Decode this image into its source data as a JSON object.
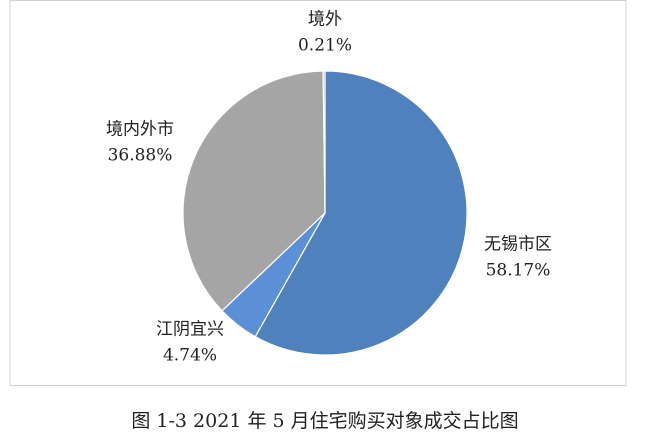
{
  "chart_data": {
    "type": "pie",
    "title": "图 1-3 2021 年 5 月住宅购买对象成交占比图",
    "categories": [
      "无锡市区",
      "江阴宜兴",
      "境内外市",
      "境外"
    ],
    "values": [
      58.17,
      4.74,
      36.88,
      0.21
    ],
    "value_labels": [
      "58.17%",
      "4.74%",
      "36.88%",
      "0.21%"
    ],
    "colors": [
      "#4f81bd",
      "#5b8fd6",
      "#a5a5a5",
      "#b8b8b8"
    ]
  }
}
